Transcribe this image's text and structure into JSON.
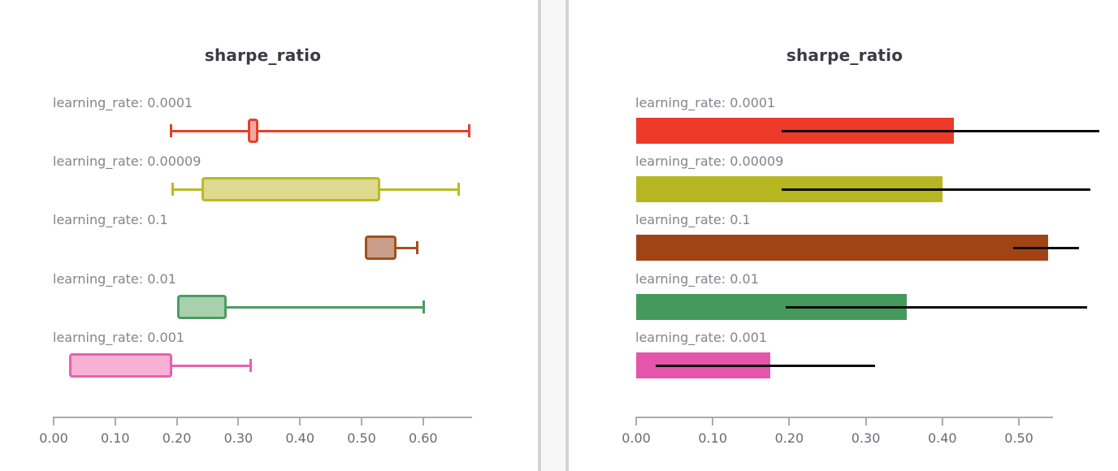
{
  "chart_data": [
    {
      "type": "boxplot",
      "title": "sharpe_ratio",
      "orientation": "horizontal",
      "xlabel": "",
      "ylabel": "",
      "xlim": [
        0.0,
        0.68
      ],
      "grid": false,
      "ticks": [
        {
          "v": 0.0,
          "label": "0.00"
        },
        {
          "v": 0.1,
          "label": "0.10"
        },
        {
          "v": 0.2,
          "label": "0.20"
        },
        {
          "v": 0.3,
          "label": "0.30"
        },
        {
          "v": 0.4,
          "label": "0.40"
        },
        {
          "v": 0.5,
          "label": "0.50"
        },
        {
          "v": 0.6,
          "label": "0.60"
        }
      ],
      "rows": [
        {
          "label": "learning_rate: 0.0001",
          "min": 0.19,
          "q1": 0.315,
          "q3": 0.332,
          "max": 0.675,
          "stroke": "#e5402e",
          "fill": "#f3a9a1"
        },
        {
          "label": "learning_rate: 0.00009",
          "min": 0.193,
          "q1": 0.24,
          "q3": 0.53,
          "max": 0.658,
          "stroke": "#b9ba25",
          "fill": "#ddd98f"
        },
        {
          "label": "learning_rate: 0.1",
          "min": 0.505,
          "q1": 0.505,
          "q3": 0.557,
          "max": 0.59,
          "stroke": "#a2511c",
          "fill": "#c99f8b"
        },
        {
          "label": "learning_rate: 0.01",
          "min": 0.2,
          "q1": 0.2,
          "q3": 0.281,
          "max": 0.601,
          "stroke": "#4d9c62",
          "fill": "#a9d0ae"
        },
        {
          "label": "learning_rate: 0.001",
          "min": 0.025,
          "q1": 0.025,
          "q3": 0.192,
          "max": 0.32,
          "stroke": "#e761ae",
          "fill": "#f6b1d4"
        }
      ]
    },
    {
      "type": "bar",
      "title": "sharpe_ratio",
      "orientation": "horizontal",
      "xlabel": "",
      "ylabel": "",
      "xlim": [
        0.0,
        0.545
      ],
      "grid": false,
      "error_bar_color": "#0a0a0a",
      "ticks": [
        {
          "v": 0.0,
          "label": "0.00"
        },
        {
          "v": 0.1,
          "label": "0.10"
        },
        {
          "v": 0.2,
          "label": "0.20"
        },
        {
          "v": 0.3,
          "label": "0.30"
        },
        {
          "v": 0.4,
          "label": "0.40"
        },
        {
          "v": 0.5,
          "label": "0.50"
        }
      ],
      "rows": [
        {
          "label": "learning_rate: 0.0001",
          "value": 0.415,
          "err_lo": 0.19,
          "err_hi": 0.605,
          "color": "#ee3a29"
        },
        {
          "label": "learning_rate: 0.00009",
          "value": 0.4,
          "err_lo": 0.19,
          "err_hi": 0.593,
          "color": "#b6b621"
        },
        {
          "label": "learning_rate: 0.1",
          "value": 0.538,
          "err_lo": 0.493,
          "err_hi": 0.579,
          "color": "#a04416"
        },
        {
          "label": "learning_rate: 0.01",
          "value": 0.354,
          "err_lo": 0.195,
          "err_hi": 0.589,
          "color": "#459a5b"
        },
        {
          "label": "learning_rate: 0.001",
          "value": 0.175,
          "err_lo": 0.025,
          "err_hi": 0.312,
          "color": "#e455ab"
        }
      ]
    }
  ]
}
